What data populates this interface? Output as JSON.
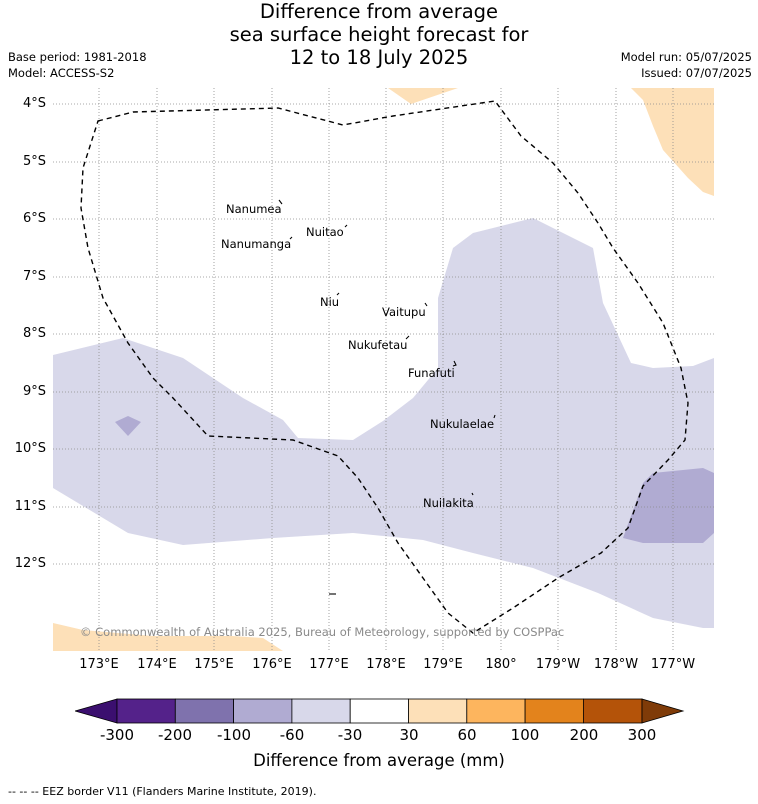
{
  "header": {
    "title_lines": [
      "Difference from average",
      "sea surface height forecast for",
      "12 to 18 July 2025"
    ],
    "base_period": "Base period: 1981-2018",
    "model": "Model: ACCESS-S2",
    "model_run": "Model run: 05/07/2025",
    "issued": "Issued: 07/07/2025"
  },
  "map": {
    "lat_labels": [
      "4°S",
      "5°S",
      "6°S",
      "7°S",
      "8°S",
      "9°S",
      "10°S",
      "11°S",
      "12°S"
    ],
    "lon_labels": [
      "173°E",
      "174°E",
      "175°E",
      "176°E",
      "177°E",
      "178°E",
      "179°E",
      "180°",
      "179°W",
      "178°W",
      "177°W"
    ],
    "places": [
      "Nanumea",
      "Nuitao",
      "Nanumanga",
      "Niu",
      "Vaitupu",
      "Nukufetau",
      "Funafuti",
      "Nukulaelae",
      "Nuilakita"
    ],
    "copyright": "© Commonwealth of Australia 2025, Bureau of Meteorology, supported by COSPPac",
    "colors": {
      "neg_30_60": "#d8d8ea",
      "neg_60_100": "#b0abd2",
      "pos_30_60": "#fde0b8",
      "eez_border": "#000000",
      "grid": "#8c8c8c"
    }
  },
  "colorbar": {
    "ticks": [
      "-300",
      "-200",
      "-100",
      "-60",
      "-30",
      "30",
      "60",
      "100",
      "200",
      "300"
    ],
    "colors": [
      "#3b0f6f",
      "#54228a",
      "#7f72ad",
      "#b0abd2",
      "#d8d8ea",
      "#ffffff",
      "#fde0b8",
      "#fdb55e",
      "#e3831c",
      "#b45309",
      "#7f3b08"
    ],
    "title": "Difference from average (mm)"
  },
  "footer": {
    "legend_text": "--  --  -- EEZ border V11 (Flanders Marine Institute, 2019)."
  }
}
